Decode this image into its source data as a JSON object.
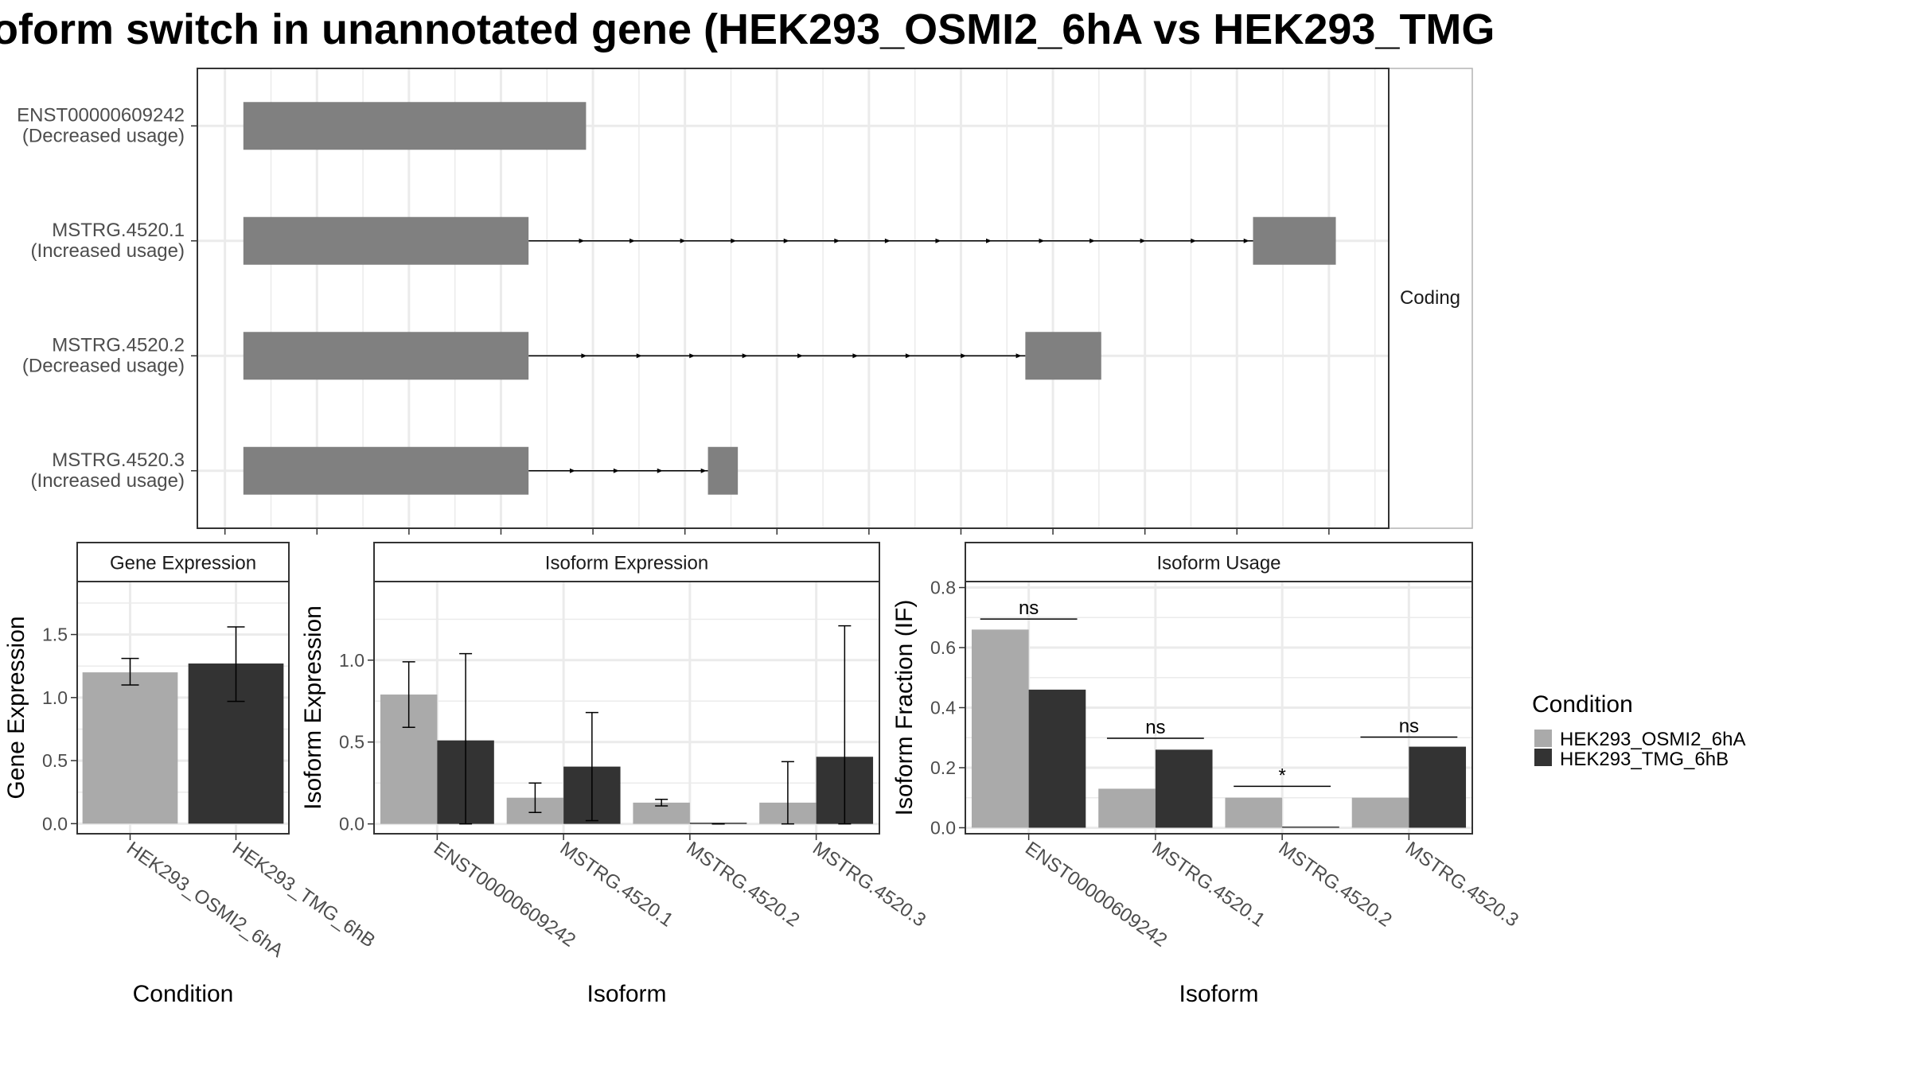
{
  "title": "oform switch in unannotated gene (HEK293_OSMI2_6hA vs HEK293_TMG",
  "colors": {
    "cond_a": "#aaaaaa",
    "cond_b": "#333333",
    "exon": "#808080",
    "grid": "#ebebeb",
    "frame": "#333333",
    "strip": "#ffffff"
  },
  "chart_data": [
    {
      "type": "gene-structure",
      "strip_label": "Coding",
      "isoforms": [
        {
          "name": "ENST00000609242",
          "label": "(Decreased usage)",
          "exons": [
            [
              0.4,
              7.85
            ]
          ],
          "intron_arrows": []
        },
        {
          "name": "MSTRG.4520.1",
          "label": "(Increased usage)",
          "exons": [
            [
              0.4,
              6.6
            ],
            [
              22.35,
              24.15
            ]
          ],
          "intron_arrows": [
            7.8,
            8.9,
            10.0,
            11.1,
            12.25,
            13.35,
            14.45,
            15.55,
            16.65,
            17.8,
            18.9,
            20.0,
            21.1,
            22.25
          ]
        },
        {
          "name": "MSTRG.4520.2",
          "label": "(Decreased usage)",
          "exons": [
            [
              0.4,
              6.6
            ],
            [
              17.4,
              19.05
            ]
          ],
          "intron_arrows": [
            7.85,
            9.05,
            10.2,
            11.35,
            12.55,
            13.75,
            14.9,
            16.1,
            17.3
          ]
        },
        {
          "name": "MSTRG.4520.3",
          "label": "(Increased usage)",
          "exons": [
            [
              0.4,
              6.6
            ],
            [
              10.5,
              11.15
            ]
          ],
          "intron_arrows": [
            7.6,
            8.55,
            9.5,
            10.45
          ]
        }
      ],
      "xlim": [
        -0.6,
        25.3
      ]
    },
    {
      "type": "bar",
      "strip": "Gene Expression",
      "ylabel": "Gene Expression",
      "xlabel": "Condition",
      "categories": [
        "HEK293_OSMI2_6hA",
        "HEK293_TMG_6hB"
      ],
      "values": [
        1.2,
        1.27
      ],
      "error_low": [
        1.1,
        0.97
      ],
      "error_high": [
        1.31,
        1.56
      ],
      "value_colors": [
        "#aaaaaa",
        "#333333"
      ],
      "yticks": [
        "0.0",
        "0.5",
        "1.0",
        "1.5"
      ],
      "ylim": [
        -0.08,
        1.92
      ]
    },
    {
      "type": "bar",
      "strip": "Isoform Expression",
      "ylabel": "Isoform Expression",
      "xlabel": "Isoform",
      "categories": [
        "ENST00000609242",
        "MSTRG.4520.1",
        "MSTRG.4520.2",
        "MSTRG.4520.3"
      ],
      "series": [
        {
          "values": [
            0.79,
            0.16,
            0.13,
            0.13
          ],
          "error_low": [
            0.59,
            0.07,
            0.11,
            0.0
          ],
          "error_high": [
            0.99,
            0.25,
            0.15,
            0.38
          ]
        },
        {
          "values": [
            0.51,
            0.35,
            0.0,
            0.41
          ],
          "error_low": [
            0.0,
            0.02,
            0.0,
            0.0
          ],
          "error_high": [
            1.04,
            0.68,
            0.0,
            1.21
          ]
        }
      ],
      "yticks": [
        "0.0",
        "0.5",
        "1.0"
      ],
      "ylim": [
        -0.06,
        1.48
      ]
    },
    {
      "type": "bar",
      "strip": "Isoform Usage",
      "ylabel": "Isoform Fraction (IF)",
      "xlabel": "Isoform",
      "categories": [
        "ENST00000609242",
        "MSTRG.4520.1",
        "MSTRG.4520.2",
        "MSTRG.4520.3"
      ],
      "series": [
        {
          "values": [
            0.66,
            0.13,
            0.1,
            0.1
          ]
        },
        {
          "values": [
            0.46,
            0.26,
            0.0,
            0.27
          ]
        }
      ],
      "significance": [
        "ns",
        "ns",
        "*",
        "ns"
      ],
      "significance_y": [
        0.695,
        0.298,
        0.138,
        0.302
      ],
      "yticks": [
        "0.0",
        "0.2",
        "0.4",
        "0.6",
        "0.8"
      ],
      "ylim": [
        -0.02,
        0.82
      ]
    }
  ],
  "legend": {
    "title": "Condition",
    "items": [
      {
        "label": "HEK293_OSMI2_6hA",
        "color": "#aaaaaa"
      },
      {
        "label": "HEK293_TMG_6hB",
        "color": "#333333"
      }
    ]
  }
}
